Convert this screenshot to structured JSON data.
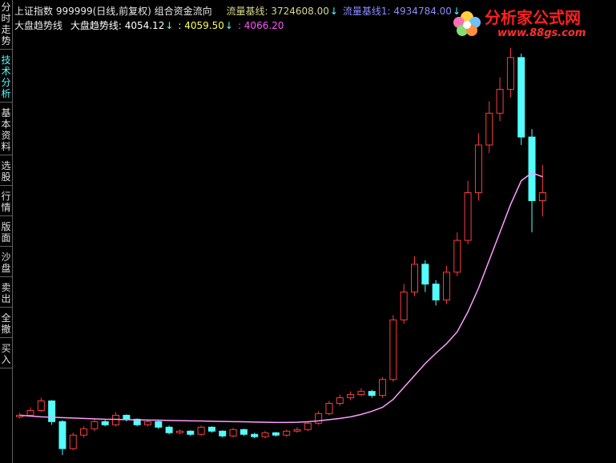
{
  "ui": {
    "sidebar_tabs": [
      "分时走势",
      "技术分析",
      "基本资料",
      "选股",
      "行情",
      "版面",
      "沙盘",
      "卖出",
      "全撤",
      "买入"
    ],
    "active_tab": 1,
    "header": {
      "title": "上证指数 999999(日线,前复权) 组合资金流向",
      "line1": [
        {
          "label": "流量基线: 3724608.00",
          "arrow": "↓",
          "color": "#d8d890"
        },
        {
          "label": "流量基线1: 4934784.00",
          "arrow": "↓",
          "color": "#8c8cff"
        }
      ],
      "line2_title": "大盘趋势线",
      "line2": [
        {
          "label": "大盘趋势线: 4054.12",
          "arrow": "↓",
          "color": "#ffffff"
        },
        {
          "label": ": 4059.50",
          "arrow": "↓",
          "color": "#ffff54"
        },
        {
          "label": ": 4066.20",
          "arrow": "",
          "color": "#ff54ff"
        }
      ]
    },
    "watermark": {
      "name": "分析家公式网",
      "url": "www.88gs.com"
    }
  },
  "chart_data": {
    "type": "candlestick",
    "ylim": [
      980,
      6200
    ],
    "up_color": "#ff3c3c",
    "down_color": "#54fcfc",
    "open": [
      1480,
      1500,
      1560,
      1680,
      1420,
      1080,
      1250,
      1330,
      1420,
      1380,
      1500,
      1450,
      1380,
      1420,
      1350,
      1280,
      1300,
      1260,
      1350,
      1300,
      1240,
      1320,
      1260,
      1230,
      1280,
      1250,
      1300,
      1320,
      1400,
      1520,
      1650,
      1720,
      1760,
      1800,
      1750,
      1950,
      2700,
      3050,
      3400,
      3150,
      2950,
      3300,
      3700,
      4300,
      4900,
      5300,
      5600,
      6000,
      5000,
      4200
    ],
    "high": [
      1530,
      1600,
      1720,
      1690,
      1440,
      1280,
      1360,
      1450,
      1440,
      1540,
      1510,
      1460,
      1440,
      1440,
      1370,
      1320,
      1310,
      1370,
      1360,
      1310,
      1340,
      1330,
      1280,
      1300,
      1290,
      1320,
      1350,
      1420,
      1550,
      1680,
      1760,
      1800,
      1840,
      1820,
      1980,
      2760,
      3150,
      3500,
      3450,
      3200,
      3380,
      3800,
      4450,
      5050,
      5450,
      5750,
      6124,
      6050,
      5100,
      4650
    ],
    "low": [
      1460,
      1480,
      1540,
      1380,
      1000,
      1060,
      1220,
      1300,
      1360,
      1360,
      1420,
      1360,
      1360,
      1330,
      1260,
      1260,
      1240,
      1240,
      1280,
      1220,
      1220,
      1240,
      1210,
      1210,
      1230,
      1230,
      1280,
      1300,
      1380,
      1500,
      1620,
      1690,
      1740,
      1720,
      1720,
      1920,
      2650,
      3000,
      3050,
      2880,
      2900,
      3250,
      3650,
      4200,
      4800,
      5200,
      5500,
      4900,
      3800,
      4000
    ],
    "close": [
      1500,
      1560,
      1680,
      1420,
      1080,
      1250,
      1330,
      1420,
      1380,
      1500,
      1450,
      1380,
      1420,
      1350,
      1280,
      1300,
      1260,
      1350,
      1300,
      1240,
      1320,
      1260,
      1230,
      1280,
      1250,
      1300,
      1320,
      1400,
      1520,
      1650,
      1720,
      1760,
      1800,
      1750,
      1950,
      2700,
      3050,
      3400,
      3150,
      2950,
      3300,
      3700,
      4300,
      4900,
      5300,
      5600,
      6000,
      5000,
      4200,
      4300
    ],
    "trend": {
      "color": "#ff9cff",
      "values": [
        1500,
        1490,
        1480,
        1475,
        1470,
        1465,
        1460,
        1455,
        1450,
        1448,
        1445,
        1442,
        1440,
        1438,
        1435,
        1432,
        1430,
        1428,
        1425,
        1422,
        1420,
        1418,
        1415,
        1412,
        1410,
        1410,
        1412,
        1418,
        1430,
        1445,
        1460,
        1480,
        1510,
        1550,
        1600,
        1700,
        1850,
        2000,
        2150,
        2280,
        2400,
        2550,
        2800,
        3100,
        3450,
        3800,
        4150,
        4450,
        4550,
        4500
      ]
    }
  }
}
